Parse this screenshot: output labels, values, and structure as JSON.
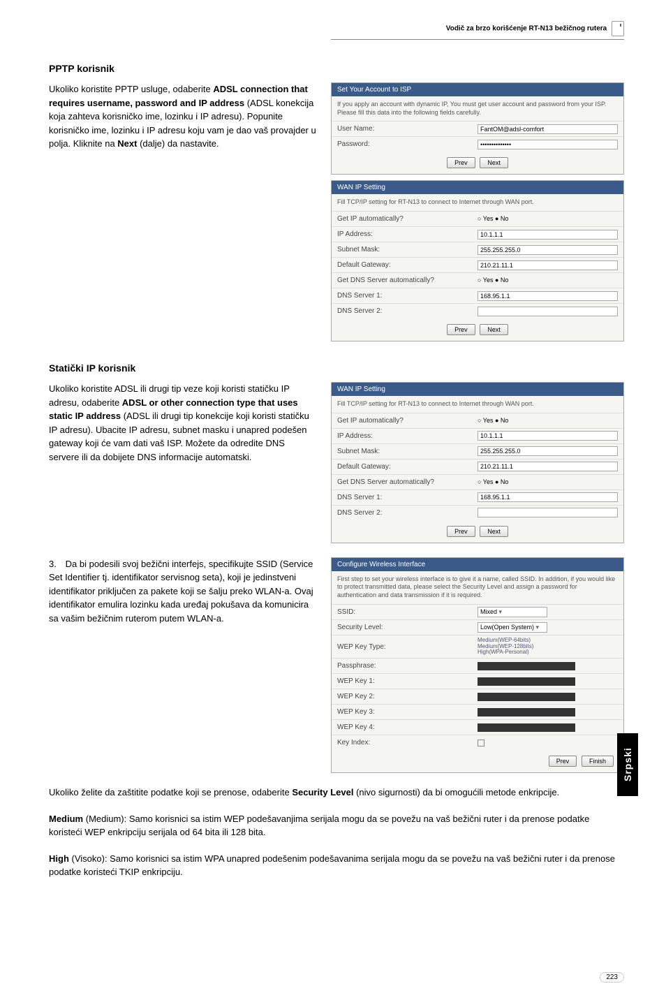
{
  "header": "Vodič za brzo korišćenje RT-N13 bežičnog rutera",
  "sections": {
    "pptp": {
      "title": "PPTP korisnik",
      "body_html": "Ukoliko koristite PPTP usluge, odaberite <b>ADSL connection that requires username, password and IP address</b> (ADSL konekcija koja zahteva korisničko ime, lozinku i IP adresu). Popunite korisničko ime, lozinku i IP adresu koju vam je dao vaš provajder u polja. Kliknite na <b>Next</b> (dalje) da nastavite."
    },
    "static": {
      "title": "Statički IP korisnik",
      "body_html": "Ukoliko koristite ADSL ili drugi tip veze koji koristi statičku IP adresu, odaberite <b>ADSL or other connection type that uses static IP address</b> (ADSL ili drugi tip konekcije koji koristi statičku IP adresu). Ubacite IP adresu, subnet masku i unapred podešen gateway koji će vam dati vaš ISP. Možete da odredite DNS servere ili da dobijete DNS informacije automatski."
    },
    "wifi": {
      "num": "3.",
      "body": "Da bi podesili svoj bežični interfejs, specifikujte SSID (Service Set Identifier tj. identifikator servisnog seta), koji je jedinstveni identifikator priključen za pakete koji se šalju preko WLAN-a. Ovaj identifikator emulira lozinku kada uređaj pokušava da komunicira sa vašim bežičnim ruterom putem WLAN-a."
    }
  },
  "panels": {
    "account": {
      "header": "Set Your Account to ISP",
      "note": "If you apply an account with dynamic IP, You must get user account and password from your ISP. Please fill this data into the following fields carefully.",
      "rows": [
        {
          "label": "User Name:",
          "value": "FantOM@adsl-comfort"
        },
        {
          "label": "Password:",
          "value": "••••••••••••••"
        }
      ],
      "btns": [
        "Prev",
        "Next"
      ]
    },
    "wanip1": {
      "header": "WAN IP Setting",
      "note": "Fill TCP/IP setting for RT-N13 to connect to Internet through WAN port.",
      "rows": [
        {
          "label": "Get IP automatically?",
          "value": "○ Yes ● No",
          "radio": true
        },
        {
          "label": "IP Address:",
          "value": "10.1.1.1"
        },
        {
          "label": "Subnet Mask:",
          "value": "255.255.255.0"
        },
        {
          "label": "Default Gateway:",
          "value": "210.21.11.1"
        },
        {
          "label": "Get DNS Server automatically?",
          "value": "○ Yes ● No",
          "radio": true
        },
        {
          "label": "DNS Server 1:",
          "value": "168.95.1.1"
        },
        {
          "label": "DNS Server 2:",
          "value": ""
        }
      ],
      "btns": [
        "Prev",
        "Next"
      ]
    },
    "wanip2": {
      "header": "WAN IP Setting",
      "note": "Fill TCP/IP setting for RT-N13 to connect to Internet through WAN port.",
      "rows": [
        {
          "label": "Get IP automatically?",
          "value": "○ Yes ● No",
          "radio": true
        },
        {
          "label": "IP Address:",
          "value": "10.1.1.1"
        },
        {
          "label": "Subnet Mask:",
          "value": "255.255.255.0"
        },
        {
          "label": "Default Gateway:",
          "value": "210.21.11.1"
        },
        {
          "label": "Get DNS Server automatically?",
          "value": "○ Yes ● No",
          "radio": true
        },
        {
          "label": "DNS Server 1:",
          "value": "168.95.1.1"
        },
        {
          "label": "DNS Server 2:",
          "value": ""
        }
      ],
      "btns": [
        "Prev",
        "Next"
      ]
    },
    "wireless": {
      "header": "Configure Wireless Interface",
      "note": "First step to set your wireless interface is to give it a name, called SSID. In addition, if you would like to protect transmitted data, please select the Security Level and assign a password for authentication and data transmission if it is required.",
      "rows": [
        {
          "label": "SSID:",
          "value": "Mixed",
          "select": true
        },
        {
          "label": "Security Level:",
          "value": "Low(Open System)",
          "select": true
        },
        {
          "label": "WEP Key Type:",
          "stacked": "Medium(WEP-64bits)\nMedium(WEP-128bits)\nHigh(WPA-Personal)"
        },
        {
          "label": "Passphrase:",
          "black": true
        },
        {
          "label": "WEP Key 1:",
          "black": true
        },
        {
          "label": "WEP Key 2:",
          "black": true
        },
        {
          "label": "WEP Key 3:",
          "black": true
        },
        {
          "label": "WEP Key 4:",
          "black": true
        },
        {
          "label": "Key Index:",
          "checkbox": true
        }
      ],
      "btns": [
        "Prev",
        "Finish"
      ]
    }
  },
  "paragraphs": {
    "p1_html": "Ukoliko želite da zaštitite podatke koji se prenose, odaberite <b>Security Level</b> (nivo sigurnosti) da bi omogućili metode enkripcije.",
    "p2_html": "<b>Medium</b> (Medium): Samo korisnici sa istim WEP podešavanjima serijala mogu da se povežu na vaš bežični ruter i da prenose podatke koristeći WEP enkripciju serijala od 64 bita ili 128 bita.",
    "p3_html": "<b>High</b> (Visoko): Samo korisnici sa istim WPA unapred podešenim podešavanima serijala mogu da se povežu na vaš bežični ruter i da prenose podatke koristeći TKIP enkripciju."
  },
  "sidetab": "Srpski",
  "pagenum": "223"
}
